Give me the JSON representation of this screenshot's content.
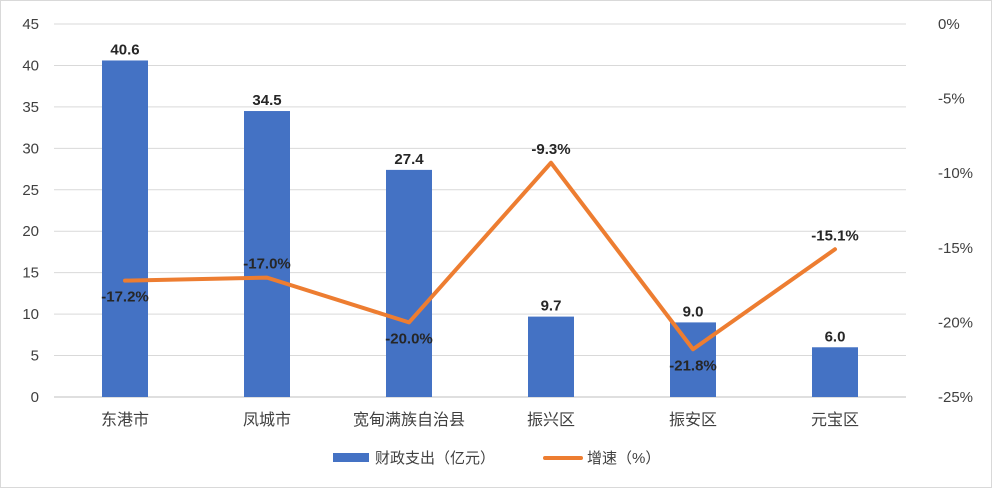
{
  "chart_data": {
    "type": "bar",
    "categories": [
      "东港市",
      "凤城市",
      "宽甸满族自治县",
      "振兴区",
      "振安区",
      "元宝区"
    ],
    "series": [
      {
        "name": "财政支出（亿元）",
        "type": "bar",
        "axis": "left",
        "values": [
          40.6,
          34.5,
          27.4,
          9.7,
          9.0,
          6.0
        ],
        "labels": [
          "40.6",
          "34.5",
          "27.4",
          "9.7",
          "9.0",
          "6.0"
        ],
        "color": "#4472c4"
      },
      {
        "name": "增速（%）",
        "type": "line",
        "axis": "right",
        "values": [
          -17.2,
          -17.0,
          -20.0,
          -9.3,
          -21.8,
          -15.1
        ],
        "labels": [
          "-17.2%",
          "-17.0%",
          "-20.0%",
          "-9.3%",
          "-21.8%",
          "-15.1%"
        ],
        "color": "#ed7d31"
      }
    ],
    "y_left": {
      "min": 0,
      "max": 45,
      "ticks": [
        0,
        5,
        10,
        15,
        20,
        25,
        30,
        35,
        40,
        45
      ],
      "tick_labels": [
        "0",
        "5",
        "10",
        "15",
        "20",
        "25",
        "30",
        "35",
        "40",
        "45"
      ]
    },
    "y_right": {
      "min": -25,
      "max": 0,
      "ticks": [
        0,
        -5,
        -10,
        -15,
        -20,
        -25
      ],
      "tick_labels": [
        "0%",
        "-5%",
        "-10%",
        "-15%",
        "-20%",
        "-25%"
      ]
    },
    "grid": true,
    "legend": {
      "position": "bottom",
      "entries": [
        {
          "label": "财政支出（亿元）",
          "color": "#4472c4",
          "kind": "bar"
        },
        {
          "label": "增速（%）",
          "color": "#ed7d31",
          "kind": "line"
        }
      ]
    },
    "title": "",
    "xlabel": "",
    "ylabel": ""
  }
}
